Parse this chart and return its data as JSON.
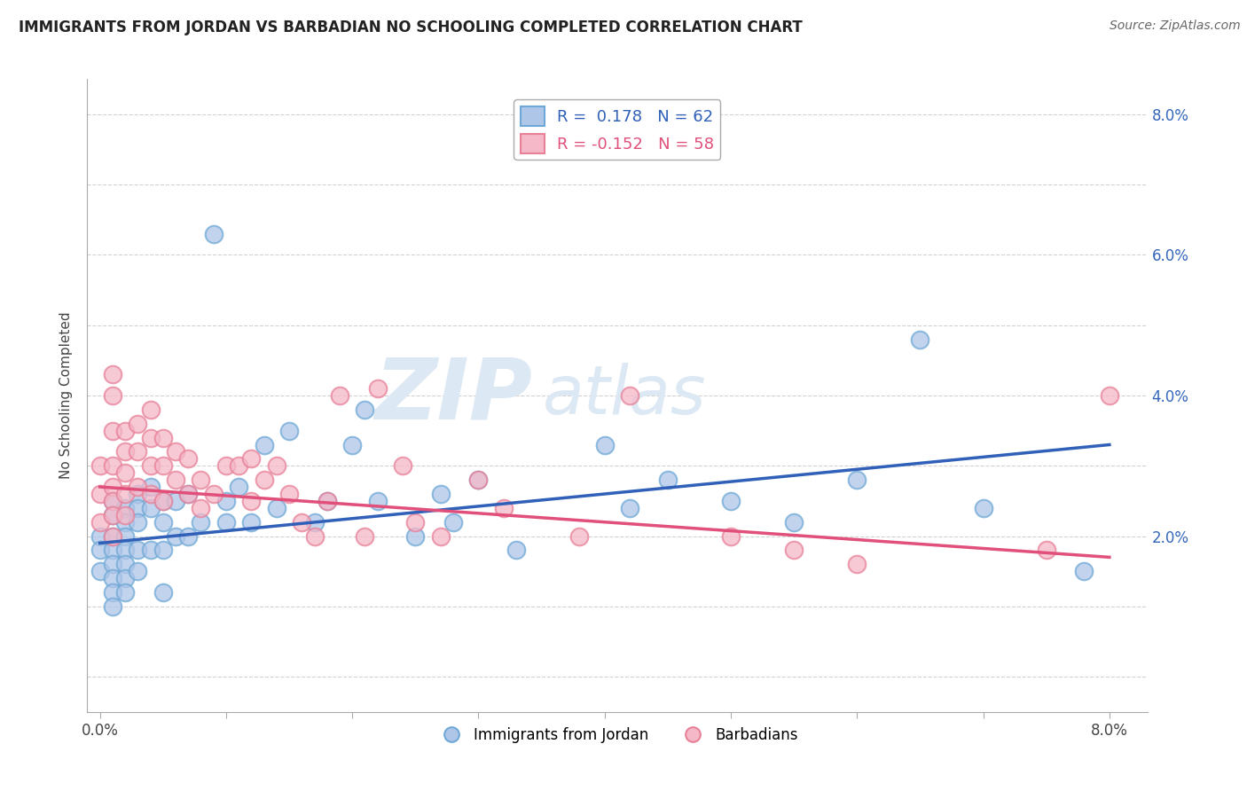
{
  "title": "IMMIGRANTS FROM JORDAN VS BARBADIAN NO SCHOOLING COMPLETED CORRELATION CHART",
  "source": "Source: ZipAtlas.com",
  "xlabel": "",
  "ylabel": "No Schooling Completed",
  "xlim": [
    -0.001,
    0.083
  ],
  "ylim": [
    -0.005,
    0.085
  ],
  "jordan_R": 0.178,
  "jordan_N": 62,
  "barbadian_R": -0.152,
  "barbadian_N": 58,
  "blue_face_color": "#aec6e8",
  "blue_edge_color": "#6fa8d6",
  "pink_face_color": "#f4b8c8",
  "pink_edge_color": "#e88098",
  "blue_line_color": "#3060b8",
  "pink_line_color": "#e0507a",
  "watermark_color": "#dce8f4",
  "background_color": "#ffffff",
  "grid_color": "#cccccc",
  "jordan_scatter_x": [
    0.0,
    0.0,
    0.0,
    0.001,
    0.001,
    0.001,
    0.001,
    0.001,
    0.001,
    0.001,
    0.001,
    0.002,
    0.002,
    0.002,
    0.002,
    0.002,
    0.002,
    0.002,
    0.003,
    0.003,
    0.003,
    0.003,
    0.003,
    0.004,
    0.004,
    0.004,
    0.005,
    0.005,
    0.005,
    0.005,
    0.006,
    0.006,
    0.007,
    0.007,
    0.008,
    0.009,
    0.01,
    0.01,
    0.011,
    0.012,
    0.013,
    0.014,
    0.015,
    0.017,
    0.018,
    0.02,
    0.021,
    0.022,
    0.025,
    0.027,
    0.028,
    0.03,
    0.033,
    0.04,
    0.042,
    0.045,
    0.05,
    0.055,
    0.06,
    0.065,
    0.07,
    0.078
  ],
  "jordan_scatter_y": [
    0.02,
    0.018,
    0.015,
    0.025,
    0.023,
    0.02,
    0.018,
    0.016,
    0.014,
    0.012,
    0.01,
    0.024,
    0.022,
    0.02,
    0.018,
    0.016,
    0.014,
    0.012,
    0.026,
    0.024,
    0.022,
    0.018,
    0.015,
    0.027,
    0.024,
    0.018,
    0.025,
    0.022,
    0.018,
    0.012,
    0.025,
    0.02,
    0.026,
    0.02,
    0.022,
    0.063,
    0.025,
    0.022,
    0.027,
    0.022,
    0.033,
    0.024,
    0.035,
    0.022,
    0.025,
    0.033,
    0.038,
    0.025,
    0.02,
    0.026,
    0.022,
    0.028,
    0.018,
    0.033,
    0.024,
    0.028,
    0.025,
    0.022,
    0.028,
    0.048,
    0.024,
    0.015
  ],
  "barbadian_scatter_x": [
    0.0,
    0.0,
    0.0,
    0.001,
    0.001,
    0.001,
    0.001,
    0.001,
    0.001,
    0.001,
    0.001,
    0.002,
    0.002,
    0.002,
    0.002,
    0.002,
    0.003,
    0.003,
    0.003,
    0.004,
    0.004,
    0.004,
    0.004,
    0.005,
    0.005,
    0.005,
    0.006,
    0.006,
    0.007,
    0.007,
    0.008,
    0.008,
    0.009,
    0.01,
    0.011,
    0.012,
    0.012,
    0.013,
    0.014,
    0.015,
    0.016,
    0.017,
    0.018,
    0.019,
    0.021,
    0.022,
    0.024,
    0.025,
    0.027,
    0.03,
    0.032,
    0.038,
    0.042,
    0.05,
    0.055,
    0.06,
    0.075,
    0.08
  ],
  "barbadian_scatter_y": [
    0.03,
    0.026,
    0.022,
    0.043,
    0.04,
    0.035,
    0.03,
    0.027,
    0.025,
    0.023,
    0.02,
    0.035,
    0.032,
    0.029,
    0.026,
    0.023,
    0.036,
    0.032,
    0.027,
    0.038,
    0.034,
    0.03,
    0.026,
    0.034,
    0.03,
    0.025,
    0.032,
    0.028,
    0.031,
    0.026,
    0.028,
    0.024,
    0.026,
    0.03,
    0.03,
    0.025,
    0.031,
    0.028,
    0.03,
    0.026,
    0.022,
    0.02,
    0.025,
    0.04,
    0.02,
    0.041,
    0.03,
    0.022,
    0.02,
    0.028,
    0.024,
    0.02,
    0.04,
    0.02,
    0.018,
    0.016,
    0.018,
    0.04
  ],
  "blue_line_x": [
    0.0,
    0.08
  ],
  "blue_line_y": [
    0.019,
    0.033
  ],
  "pink_line_x": [
    0.0,
    0.08
  ],
  "pink_line_y": [
    0.027,
    0.017
  ],
  "legend_blue_label": "R =  0.178   N = 62",
  "legend_pink_label": "R = -0.152   N = 58",
  "bottom_legend_blue": "Immigrants from Jordan",
  "bottom_legend_pink": "Barbadians"
}
